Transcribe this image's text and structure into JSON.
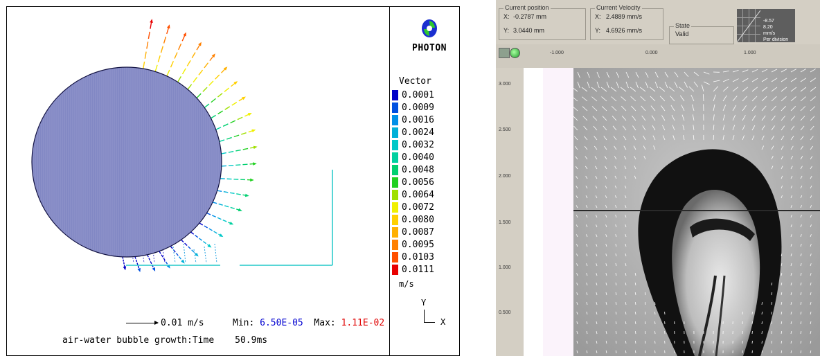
{
  "simulation": {
    "logo": {
      "text": "PHOTON",
      "icon": "photon-logo-icon"
    },
    "legend": {
      "title": "Vector",
      "units": "m/s",
      "entries": [
        {
          "value": "0.0001",
          "color": "#0000c8"
        },
        {
          "value": "0.0009",
          "color": "#0050e0"
        },
        {
          "value": "0.0016",
          "color": "#0090e8"
        },
        {
          "value": "0.0024",
          "color": "#00b0d8"
        },
        {
          "value": "0.0032",
          "color": "#00c8c8"
        },
        {
          "value": "0.0040",
          "color": "#00d0a0"
        },
        {
          "value": "0.0048",
          "color": "#00d070"
        },
        {
          "value": "0.0056",
          "color": "#20d020"
        },
        {
          "value": "0.0064",
          "color": "#a0e000"
        },
        {
          "value": "0.0072",
          "color": "#f0f000"
        },
        {
          "value": "0.0080",
          "color": "#ffd000"
        },
        {
          "value": "0.0087",
          "color": "#ffb000"
        },
        {
          "value": "0.0095",
          "color": "#ff8000"
        },
        {
          "value": "0.0103",
          "color": "#ff5000"
        },
        {
          "value": "0.0111",
          "color": "#e80000"
        }
      ]
    },
    "axes": {
      "y_label": "Y",
      "x_label": "X"
    },
    "reference_vector": {
      "label": "0.01 m/s"
    },
    "min": {
      "label": "Min:",
      "value": "6.50E-05"
    },
    "max": {
      "label": "Max:",
      "value": "1.11E-02"
    },
    "caption": {
      "text": "air-water bubble growth:Time",
      "time": "50.9ms"
    },
    "colors": {
      "bubble": "#8a8fc8",
      "wall": "#20c8c8"
    }
  },
  "piv": {
    "current_position": {
      "title": "Current position",
      "x_label": "X:",
      "x_value": "-0.2787 mm",
      "y_label": "Y:",
      "y_value": "3.0440 mm"
    },
    "current_velocity": {
      "title": "Current Velocity",
      "x_label": "X:",
      "x_value": "2.4889 mm/s",
      "y_label": "Y:",
      "y_value": "4.6926 mm/s"
    },
    "state": {
      "title": "State",
      "value": "Valid"
    },
    "scale_box": {
      "line1": "-8.57",
      "line2": "8.20",
      "line3": "mm/s",
      "line4": "Per division"
    },
    "x_ticks": [
      "-1.000",
      "0.000",
      "1.000"
    ],
    "y_ticks": [
      "3.000",
      "2.500",
      "2.000",
      "1.500",
      "1.000",
      "0.500"
    ]
  }
}
